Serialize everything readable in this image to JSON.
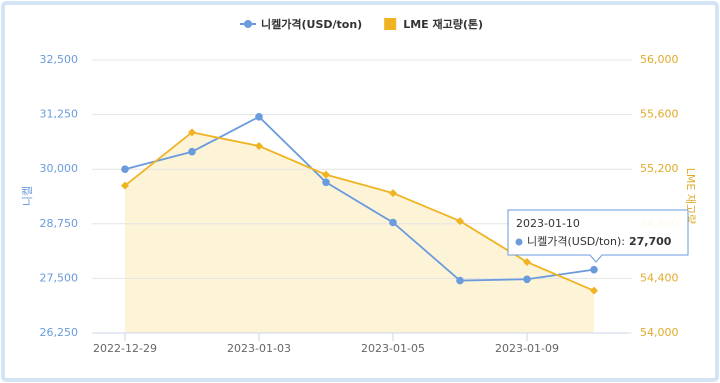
{
  "chart_data": {
    "type": "line",
    "categories": [
      "2022-12-29",
      null,
      "2023-01-03",
      null,
      "2023-01-05",
      null,
      "2023-01-09",
      null
    ],
    "series": [
      {
        "name": "니켈가격(USD/ton)",
        "color": "#6a9bdc",
        "values": [
          30000,
          30400,
          31200,
          29700,
          28780,
          27450,
          27480,
          27700
        ]
      },
      {
        "name": "LME 재고량(톤)",
        "color": "#f0b322",
        "axis": "y2",
        "area_color": "#fdf4d8",
        "values": [
          55080,
          55470,
          55370,
          55160,
          55025,
          54820,
          54520,
          54310
        ]
      }
    ],
    "ylabel": "니켈",
    "y2label": "LME 재고량",
    "ylim": [
      26250,
      32500
    ],
    "yticks": [
      {
        "value": 26250,
        "label": "26,250"
      },
      {
        "value": 27500,
        "label": "27,500"
      },
      {
        "value": 28750,
        "label": "28,750"
      },
      {
        "value": 30000,
        "label": "30,000"
      },
      {
        "value": 31250,
        "label": "31,250"
      },
      {
        "value": 32500,
        "label": "32,500"
      }
    ],
    "y2lim": [
      54000,
      56000
    ],
    "y2ticks": [
      {
        "value": 54000,
        "label": "54,000"
      },
      {
        "value": 54400,
        "label": "54,400"
      },
      {
        "value": 54800,
        "label": "54,800"
      },
      {
        "value": 55200,
        "label": "55,200"
      },
      {
        "value": 55600,
        "label": "55,600"
      },
      {
        "value": 56000,
        "label": "56,000"
      }
    ],
    "grid": true,
    "legend": "top",
    "tooltip": {
      "title": "2023-01-10",
      "series": "니켈가격(USD/ton):",
      "value_label": "27,700"
    }
  }
}
